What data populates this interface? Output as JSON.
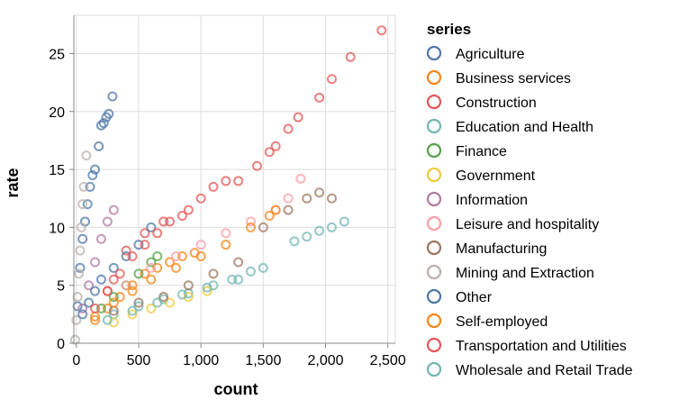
{
  "chart_data": {
    "type": "scatter",
    "xlabel": "count",
    "ylabel": "rate",
    "xlim": [
      -20,
      2560
    ],
    "ylim": [
      0,
      28.3
    ],
    "x_ticks": [
      {
        "value": 0,
        "label": "0"
      },
      {
        "value": 500,
        "label": "500"
      },
      {
        "value": 1000,
        "label": "1,000"
      },
      {
        "value": 1500,
        "label": "1,500"
      },
      {
        "value": 2000,
        "label": "2,000"
      },
      {
        "value": 2500,
        "label": "2,500"
      }
    ],
    "y_ticks": [
      {
        "value": 0,
        "label": "0"
      },
      {
        "value": 5,
        "label": "5"
      },
      {
        "value": 10,
        "label": "10"
      },
      {
        "value": 15,
        "label": "15"
      },
      {
        "value": 20,
        "label": "20"
      },
      {
        "value": 25,
        "label": "25"
      }
    ],
    "grid": true,
    "marker": "hollow-circle",
    "legend": {
      "title": "series",
      "placement": "right"
    },
    "series": [
      {
        "name": "Agriculture",
        "color": "#4c78a8",
        "points": [
          [
            10,
            3.2
          ],
          [
            30,
            6.5
          ],
          [
            50,
            9.0
          ],
          [
            70,
            10.5
          ],
          [
            90,
            12.0
          ],
          [
            110,
            13.5
          ],
          [
            130,
            14.5
          ],
          [
            150,
            15.0
          ],
          [
            180,
            17.0
          ],
          [
            200,
            18.8
          ],
          [
            220,
            19.0
          ],
          [
            240,
            19.5
          ],
          [
            260,
            19.8
          ],
          [
            290,
            21.3
          ]
        ]
      },
      {
        "name": "Business services",
        "color": "#f58518",
        "points": [
          [
            150,
            2.0
          ],
          [
            250,
            3.0
          ],
          [
            350,
            4.0
          ],
          [
            450,
            5.0
          ],
          [
            550,
            6.0
          ],
          [
            650,
            6.5
          ],
          [
            750,
            7.0
          ],
          [
            850,
            7.5
          ],
          [
            950,
            7.8
          ]
        ]
      },
      {
        "name": "Construction",
        "color": "#e45756",
        "points": [
          [
            250,
            4.5
          ],
          [
            300,
            5.5
          ],
          [
            400,
            8.0
          ],
          [
            550,
            9.5
          ],
          [
            700,
            10.5
          ],
          [
            900,
            11.5
          ],
          [
            1000,
            12.5
          ],
          [
            1100,
            13.5
          ],
          [
            1200,
            14.0
          ],
          [
            1300,
            14.0
          ],
          [
            1450,
            15.3
          ],
          [
            1550,
            16.5
          ],
          [
            1600,
            17.0
          ],
          [
            1700,
            18.5
          ],
          [
            1780,
            19.5
          ],
          [
            1950,
            21.2
          ],
          [
            2050,
            22.8
          ],
          [
            2200,
            24.7
          ],
          [
            2450,
            27.0
          ]
        ]
      },
      {
        "name": "Education and Health",
        "color": "#72b7b2",
        "points": [
          [
            300,
            2.5
          ],
          [
            500,
            3.2
          ],
          [
            700,
            3.8
          ],
          [
            900,
            4.3
          ],
          [
            1100,
            5.0
          ],
          [
            1300,
            5.5
          ],
          [
            1500,
            6.5
          ],
          [
            1750,
            8.8
          ],
          [
            1850,
            9.2
          ],
          [
            1950,
            9.7
          ],
          [
            2050,
            10.0
          ],
          [
            2150,
            10.5
          ]
        ]
      },
      {
        "name": "Finance",
        "color": "#54a24b",
        "points": [
          [
            200,
            3.0
          ],
          [
            300,
            4.0
          ],
          [
            400,
            5.0
          ],
          [
            500,
            6.0
          ],
          [
            600,
            7.0
          ],
          [
            650,
            7.5
          ]
        ]
      },
      {
        "name": "Government",
        "color": "#eeca3b",
        "points": [
          [
            300,
            1.8
          ],
          [
            450,
            2.5
          ],
          [
            600,
            3.0
          ],
          [
            750,
            3.5
          ],
          [
            900,
            4.0
          ],
          [
            1050,
            4.5
          ]
        ]
      },
      {
        "name": "Information",
        "color": "#b279a2",
        "points": [
          [
            50,
            3.0
          ],
          [
            100,
            5.0
          ],
          [
            150,
            7.0
          ],
          [
            200,
            9.0
          ],
          [
            250,
            10.5
          ],
          [
            300,
            11.5
          ]
        ]
      },
      {
        "name": "Leisure and hospitality",
        "color": "#ff9da6",
        "points": [
          [
            400,
            5.0
          ],
          [
            600,
            6.5
          ],
          [
            800,
            7.5
          ],
          [
            1000,
            8.5
          ],
          [
            1200,
            9.5
          ],
          [
            1400,
            10.5
          ],
          [
            1600,
            11.5
          ],
          [
            1700,
            12.5
          ],
          [
            1800,
            14.2
          ]
        ]
      },
      {
        "name": "Manufacturing",
        "color": "#9d755d",
        "points": [
          [
            300,
            2.8
          ],
          [
            500,
            3.5
          ],
          [
            700,
            4.0
          ],
          [
            900,
            5.0
          ],
          [
            1100,
            6.0
          ],
          [
            1300,
            7.0
          ],
          [
            1500,
            10.0
          ],
          [
            1700,
            11.5
          ],
          [
            1850,
            12.5
          ],
          [
            1950,
            13.0
          ],
          [
            2050,
            12.5
          ]
        ]
      },
      {
        "name": "Mining and Extraction",
        "color": "#bab0ac",
        "points": [
          [
            -10,
            0.3
          ],
          [
            0,
            2.0
          ],
          [
            10,
            4.0
          ],
          [
            20,
            6.0
          ],
          [
            30,
            8.0
          ],
          [
            40,
            10.0
          ],
          [
            50,
            12.0
          ],
          [
            60,
            13.5
          ],
          [
            80,
            16.2
          ]
        ]
      },
      {
        "name": "Other",
        "color": "#4c78a8",
        "points": [
          [
            50,
            2.5
          ],
          [
            100,
            3.5
          ],
          [
            150,
            4.5
          ],
          [
            200,
            5.5
          ],
          [
            300,
            6.5
          ],
          [
            400,
            7.5
          ],
          [
            500,
            8.5
          ],
          [
            600,
            10.0
          ]
        ]
      },
      {
        "name": "Self-employed",
        "color": "#f58518",
        "points": [
          [
            150,
            2.3
          ],
          [
            300,
            3.5
          ],
          [
            450,
            4.5
          ],
          [
            600,
            5.5
          ],
          [
            800,
            6.5
          ],
          [
            1000,
            7.5
          ],
          [
            1200,
            8.5
          ],
          [
            1400,
            10.0
          ],
          [
            1550,
            11.0
          ],
          [
            1600,
            11.5
          ]
        ]
      },
      {
        "name": "Transportation and Utilities",
        "color": "#e45756",
        "points": [
          [
            150,
            3.0
          ],
          [
            250,
            4.5
          ],
          [
            350,
            6.0
          ],
          [
            450,
            7.5
          ],
          [
            550,
            8.5
          ],
          [
            650,
            9.5
          ],
          [
            750,
            10.5
          ],
          [
            850,
            11.0
          ]
        ]
      },
      {
        "name": "Wholesale and Retail Trade",
        "color": "#72b7b2",
        "points": [
          [
            250,
            2.0
          ],
          [
            450,
            2.8
          ],
          [
            650,
            3.5
          ],
          [
            850,
            4.2
          ],
          [
            1050,
            4.8
          ],
          [
            1250,
            5.5
          ],
          [
            1400,
            6.2
          ]
        ]
      }
    ]
  }
}
